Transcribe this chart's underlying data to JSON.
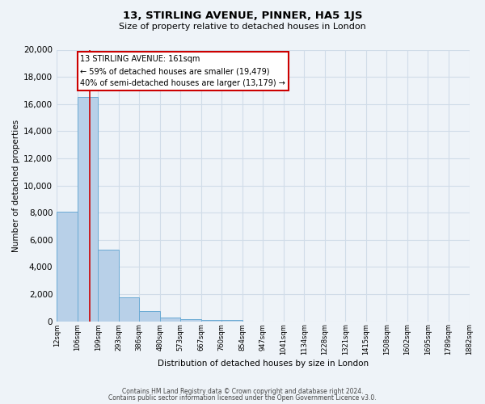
{
  "title": "13, STIRLING AVENUE, PINNER, HA5 1JS",
  "subtitle": "Size of property relative to detached houses in London",
  "xlabel": "Distribution of detached houses by size in London",
  "ylabel": "Number of detached properties",
  "bar_color": "#b8d0e8",
  "bar_edge_color": "#6aaad4",
  "bar_heights": [
    8050,
    16500,
    5250,
    1750,
    750,
    300,
    175,
    100,
    75,
    0,
    0,
    0,
    0,
    0,
    0,
    0,
    0,
    0,
    0,
    0
  ],
  "bin_labels": [
    "12sqm",
    "106sqm",
    "199sqm",
    "293sqm",
    "386sqm",
    "480sqm",
    "573sqm",
    "667sqm",
    "760sqm",
    "854sqm",
    "947sqm",
    "1041sqm",
    "1134sqm",
    "1228sqm",
    "1321sqm",
    "1415sqm",
    "1508sqm",
    "1602sqm",
    "1695sqm",
    "1789sqm",
    "1882sqm"
  ],
  "ylim": [
    0,
    20000
  ],
  "yticks": [
    0,
    2000,
    4000,
    6000,
    8000,
    10000,
    12000,
    14000,
    16000,
    18000,
    20000
  ],
  "property_size_sqm": 161,
  "annotation_title": "13 STIRLING AVENUE: 161sqm",
  "annotation_line1": "← 59% of detached houses are smaller (19,479)",
  "annotation_line2": "40% of semi-detached houses are larger (13,179) →",
  "vline_color": "#cc0000",
  "grid_color": "#d0dce8",
  "bg_color": "#eef3f8",
  "footer1": "Contains HM Land Registry data © Crown copyright and database right 2024.",
  "footer2": "Contains public sector information licensed under the Open Government Licence v3.0."
}
